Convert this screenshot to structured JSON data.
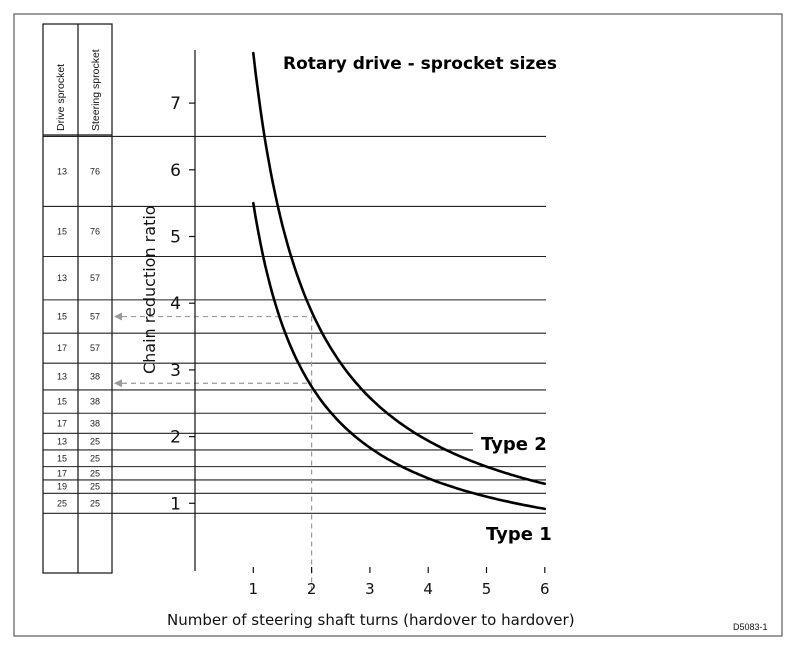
{
  "chart_data": {
    "type": "line",
    "title": "Rotary drive - sprocket sizes",
    "xlabel": "Number of steering shaft turns (hardover to hardover)",
    "ylabel": "Chain reduction ratio",
    "xlim": [
      0,
      6
    ],
    "ylim": [
      0,
      7.7
    ],
    "x_ticks": [
      "1",
      "2",
      "3",
      "4",
      "5",
      "6"
    ],
    "y_ticks": [
      "1",
      "2",
      "3",
      "4",
      "5",
      "6",
      "7"
    ],
    "series": [
      {
        "name": "Type 2",
        "x": [
          1,
          1.25,
          1.5,
          2,
          2.5,
          3,
          4,
          5,
          6
        ],
        "y": [
          7.75,
          6.2,
          5.17,
          3.88,
          3.1,
          2.58,
          1.94,
          1.55,
          1.29
        ]
      },
      {
        "name": "Type 1",
        "x": [
          1,
          1.25,
          1.5,
          2,
          2.5,
          3,
          4,
          5,
          6
        ],
        "y": [
          5.5,
          4.4,
          3.67,
          2.75,
          2.2,
          1.83,
          1.38,
          1.1,
          0.92
        ]
      }
    ],
    "reference_lines": {
      "horizontal_y": [
        6.5,
        5.45,
        4.7,
        4.05,
        3.55,
        3.1,
        2.7,
        2.35,
        2.05,
        1.8,
        1.55,
        1.35,
        1.15,
        0.85
      ],
      "example_x": 2,
      "example_y": [
        3.8,
        2.8
      ]
    },
    "table": {
      "headers": [
        "Drive sprocket",
        "Steering sprocket"
      ],
      "rows": [
        {
          "drive": "13",
          "steering": "76"
        },
        {
          "drive": "15",
          "steering": "76"
        },
        {
          "drive": "13",
          "steering": "57"
        },
        {
          "drive": "15",
          "steering": "57"
        },
        {
          "drive": "17",
          "steering": "57"
        },
        {
          "drive": "13",
          "steering": "38"
        },
        {
          "drive": "15",
          "steering": "38"
        },
        {
          "drive": "17",
          "steering": "38"
        },
        {
          "drive": "13",
          "steering": "25"
        },
        {
          "drive": "15",
          "steering": "25"
        },
        {
          "drive": "17",
          "steering": "25"
        },
        {
          "drive": "19",
          "steering": "25"
        },
        {
          "drive": "25",
          "steering": "25"
        }
      ]
    },
    "labels": {
      "type2": "Type 2",
      "type1": "Type 1"
    },
    "figure_code": "D5083-1"
  }
}
